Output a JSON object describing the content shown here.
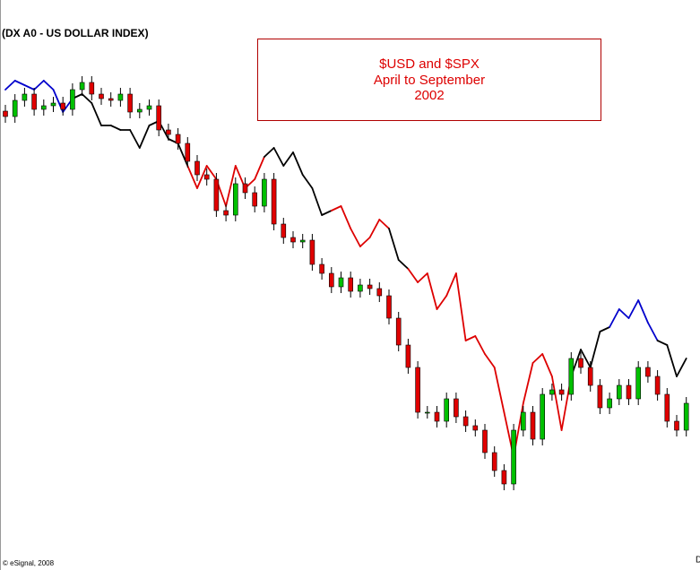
{
  "chart_data": {
    "type": "candlestick",
    "title": "(DX A0 - US DOLLAR INDEX)",
    "annotation": [
      "$USD and $SPX",
      "April to September",
      "2002"
    ],
    "footer": "© eSignal, 2008",
    "corner_label": "D",
    "ylim": [
      98.2,
      130
    ],
    "up_color": "#00c000",
    "down_color": "#e00000",
    "open": [
      123.8,
      123.5,
      124.4,
      124.75,
      123.9,
      124.1,
      124.25,
      123.9,
      125,
      125.4,
      124.75,
      124.5,
      124.4,
      124.75,
      123.75,
      123.9,
      124.1,
      122.75,
      122.5,
      122,
      121,
      120.25,
      120,
      118.25,
      118,
      119.75,
      119.25,
      118.5,
      120,
      117.5,
      116.75,
      116.5,
      116.6,
      115.25,
      114.75,
      114,
      114.5,
      113.75,
      114.1,
      113.9,
      113.5,
      112.25,
      110.75,
      109.5,
      107,
      107,
      106.5,
      107.75,
      106.75,
      106.25,
      106,
      104.75,
      103.75,
      103,
      106,
      107,
      105.5,
      108,
      108.25,
      108,
      110,
      109.5,
      108.5,
      107.25,
      107.75,
      108.5,
      107.75,
      109.5,
      109,
      108,
      106.5,
      106
    ],
    "high": [
      124.15,
      124.75,
      125.1,
      125.1,
      124.45,
      124.6,
      124.6,
      125.35,
      125.75,
      125.75,
      125.1,
      124.85,
      125.1,
      125.1,
      124.25,
      124.45,
      124.45,
      123.1,
      122.85,
      122.35,
      121.35,
      120.6,
      120.35,
      118.6,
      120.1,
      120.1,
      119.6,
      120.35,
      120.35,
      117.85,
      117.1,
      116.95,
      116.95,
      115.6,
      115.1,
      114.85,
      114.85,
      114.45,
      114.45,
      114.25,
      113.85,
      112.6,
      111.1,
      109.85,
      107.35,
      107.35,
      108.1,
      108.1,
      107.1,
      106.6,
      106.35,
      105.1,
      104.1,
      106.35,
      107.35,
      107.35,
      108.35,
      108.6,
      108.6,
      110.35,
      110.35,
      109.85,
      108.85,
      108.1,
      108.85,
      108.85,
      109.85,
      109.85,
      109.35,
      108.35,
      106.85,
      107.85
    ],
    "low": [
      123.15,
      123.15,
      124.05,
      123.55,
      123.55,
      123.75,
      123.55,
      123.55,
      124.65,
      124.4,
      124.15,
      124.05,
      124.05,
      123.4,
      123.4,
      123.55,
      122.4,
      122.15,
      121.65,
      120.65,
      119.9,
      119.65,
      117.9,
      117.65,
      117.65,
      118.9,
      118.15,
      118.15,
      117.15,
      116.4,
      116.15,
      116.15,
      114.9,
      114.4,
      113.65,
      113.65,
      113.4,
      113.4,
      113.55,
      113.15,
      111.9,
      110.4,
      109.15,
      106.65,
      106.65,
      106.15,
      106.15,
      106.4,
      105.9,
      105.65,
      104.4,
      103.4,
      102.65,
      102.65,
      105.65,
      105.15,
      105.15,
      107.65,
      107.65,
      107.65,
      109.15,
      108.15,
      106.9,
      106.9,
      107.4,
      107.4,
      107.4,
      108.65,
      107.65,
      106.15,
      105.65,
      105.65
    ],
    "close": [
      123.5,
      124.4,
      124.75,
      123.9,
      124.1,
      124.25,
      123.9,
      125,
      125.4,
      124.75,
      124.5,
      124.4,
      124.75,
      123.75,
      123.9,
      124.1,
      122.75,
      122.5,
      122,
      121,
      120.25,
      120,
      118.25,
      118,
      119.75,
      119.25,
      118.5,
      120,
      117.5,
      116.75,
      116.5,
      116.6,
      115.25,
      114.75,
      114,
      114.5,
      113.75,
      114.1,
      113.9,
      113.5,
      112.25,
      110.75,
      109.5,
      107,
      107,
      106.5,
      107.75,
      106.75,
      106.25,
      106,
      104.75,
      103.75,
      103,
      106,
      107,
      105.5,
      108,
      108.25,
      108,
      110,
      109.5,
      108.5,
      107.25,
      107.75,
      108.5,
      107.75,
      109.5,
      109,
      108,
      106.5,
      106,
      107.5
    ],
    "overlay": {
      "type": "line",
      "values": [
        125,
        125.5,
        125.25,
        125,
        125.5,
        125,
        123.75,
        124.5,
        124.75,
        124.25,
        123,
        123,
        122.75,
        122.75,
        121.75,
        123,
        123.25,
        122.25,
        122,
        120.75,
        119.5,
        120.75,
        120,
        118.5,
        120.75,
        119.5,
        120,
        121.25,
        121.75,
        120.75,
        121.5,
        120.25,
        119.5,
        118,
        118.25,
        118.5,
        117.25,
        116.25,
        116.75,
        117.75,
        117.25,
        115.5,
        115,
        114.25,
        114.75,
        112.75,
        113.5,
        114.75,
        111,
        111.25,
        110.25,
        109.5,
        107,
        104.5,
        107.5,
        109.75,
        110.25,
        109,
        106,
        109,
        110.5,
        109.5,
        111.5,
        111.75,
        112.75,
        112.25,
        113.25,
        112,
        111,
        110.75,
        109,
        110
      ],
      "colors": [
        "#0000cc",
        "#0000cc",
        "#0000cc",
        "#0000cc",
        "#0000cc",
        "#0000cc",
        "#0000cc",
        "#000000",
        "#000000",
        "#000000",
        "#000000",
        "#000000",
        "#000000",
        "#000000",
        "#000000",
        "#000000",
        "#000000",
        "#000000",
        "#000000",
        "#dd0000",
        "#dd0000",
        "#dd0000",
        "#dd0000",
        "#dd0000",
        "#dd0000",
        "#dd0000",
        "#dd0000",
        "#000000",
        "#000000",
        "#000000",
        "#000000",
        "#000000",
        "#000000",
        "#000000",
        "#dd0000",
        "#dd0000",
        "#dd0000",
        "#dd0000",
        "#dd0000",
        "#dd0000",
        "#000000",
        "#000000",
        "#dd0000",
        "#dd0000",
        "#dd0000",
        "#dd0000",
        "#dd0000",
        "#dd0000",
        "#dd0000",
        "#dd0000",
        "#dd0000",
        "#dd0000",
        "#dd0000",
        "#dd0000",
        "#dd0000",
        "#dd0000",
        "#dd0000",
        "#dd0000",
        "#dd0000",
        "#000000",
        "#000000",
        "#000000",
        "#000000",
        "#0000cc",
        "#0000cc",
        "#0000cc",
        "#0000cc",
        "#0000cc",
        "#000000",
        "#000000",
        "#000000",
        "#000000"
      ]
    }
  }
}
